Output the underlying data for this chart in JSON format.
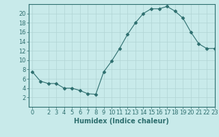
{
  "x": [
    0,
    1,
    2,
    3,
    4,
    5,
    6,
    7,
    8,
    9,
    10,
    11,
    12,
    13,
    14,
    15,
    16,
    17,
    18,
    19,
    20,
    21,
    22,
    23
  ],
  "y": [
    7.5,
    5.5,
    5.0,
    5.0,
    4.0,
    4.0,
    3.5,
    2.8,
    2.7,
    7.5,
    9.8,
    12.5,
    15.5,
    18.0,
    20.0,
    21.0,
    21.0,
    21.5,
    20.5,
    19.0,
    16.0,
    13.5,
    12.5,
    12.5
  ],
  "xlabel": "Humidex (Indice chaleur)",
  "ylim": [
    0,
    22
  ],
  "xlim": [
    -0.5,
    23
  ],
  "yticks": [
    2,
    4,
    6,
    8,
    10,
    12,
    14,
    16,
    18,
    20
  ],
  "xticks": [
    0,
    2,
    3,
    4,
    5,
    6,
    7,
    8,
    9,
    10,
    11,
    12,
    13,
    14,
    15,
    16,
    17,
    18,
    19,
    20,
    21,
    22,
    23
  ],
  "line_color": "#2d6e6e",
  "marker": "D",
  "marker_size": 2.5,
  "bg_color": "#c8eaea",
  "grid_color": "#b0d4d4",
  "axes_color": "#2d6e6e",
  "label_fontsize": 7,
  "tick_fontsize": 6
}
